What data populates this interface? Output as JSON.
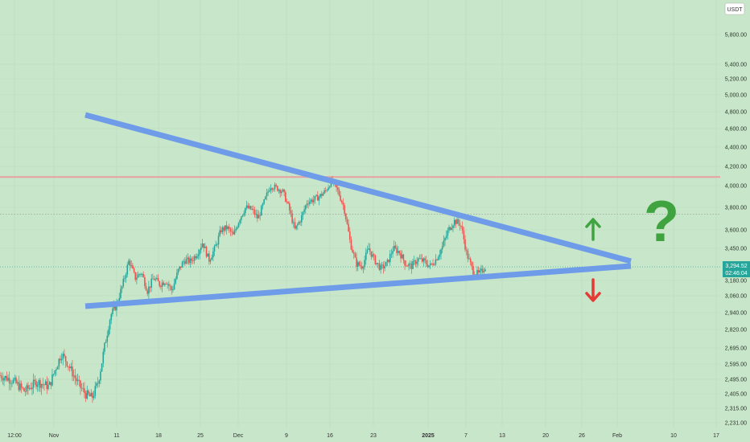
{
  "chart_data": {
    "type": "candlestick",
    "currency": "USDT",
    "y_ticks": [
      "5,800.00",
      "5,400.00",
      "5,200.00",
      "5,000.00",
      "4,800.00",
      "4,600.00",
      "4,400.00",
      "4,200.00",
      "4,000.00",
      "3,800.00",
      "3,600.00",
      "3,450.00",
      "3,180.00",
      "3,060.00",
      "2,940.00",
      "2,820.00",
      "2,695.00",
      "2,595.00",
      "2,495.00",
      "2,405.00",
      "2,315.00",
      "2,231.00"
    ],
    "x_ticks": [
      {
        "label": "12:00",
        "bold": false
      },
      {
        "label": "Nov",
        "bold": false
      },
      {
        "label": "11",
        "bold": false
      },
      {
        "label": "18",
        "bold": false
      },
      {
        "label": "25",
        "bold": false
      },
      {
        "label": "Dec",
        "bold": false
      },
      {
        "label": "9",
        "bold": false
      },
      {
        "label": "16",
        "bold": false
      },
      {
        "label": "23",
        "bold": false
      },
      {
        "label": "2025",
        "bold": true
      },
      {
        "label": "7",
        "bold": false
      },
      {
        "label": "13",
        "bold": false
      },
      {
        "label": "20",
        "bold": false
      },
      {
        "label": "26",
        "bold": false
      },
      {
        "label": "Feb",
        "bold": false
      },
      {
        "label": "10",
        "bold": false
      },
      {
        "label": "17",
        "bold": false
      }
    ],
    "current_price": "3,294.52",
    "countdown": "02:46:04",
    "resistance_level": 4090,
    "dotted_level": 3740,
    "price_path": [
      [
        0,
        2520
      ],
      [
        2,
        2490
      ],
      [
        4,
        2420
      ],
      [
        6,
        2480
      ],
      [
        8,
        2450
      ],
      [
        9,
        2560
      ],
      [
        10,
        2660
      ],
      [
        11,
        2600
      ],
      [
        12,
        2520
      ],
      [
        13,
        2450
      ],
      [
        14,
        2400
      ],
      [
        15,
        2380
      ],
      [
        16,
        2480
      ],
      [
        17,
        2700
      ],
      [
        18,
        2920
      ],
      [
        19,
        3000
      ],
      [
        20,
        3150
      ],
      [
        21,
        3350
      ],
      [
        22,
        3200
      ],
      [
        23,
        3250
      ],
      [
        24,
        3100
      ],
      [
        25,
        3200
      ],
      [
        26,
        3150
      ],
      [
        27,
        3180
      ],
      [
        28,
        3100
      ],
      [
        29,
        3260
      ],
      [
        30,
        3350
      ],
      [
        31,
        3340
      ],
      [
        32,
        3400
      ],
      [
        33,
        3500
      ],
      [
        34,
        3350
      ],
      [
        35,
        3450
      ],
      [
        36,
        3600
      ],
      [
        37,
        3620
      ],
      [
        38,
        3550
      ],
      [
        39,
        3700
      ],
      [
        40,
        3800
      ],
      [
        41,
        3780
      ],
      [
        42,
        3700
      ],
      [
        43,
        3850
      ],
      [
        44,
        4000
      ],
      [
        45,
        3980
      ],
      [
        46,
        3950
      ],
      [
        47,
        3800
      ],
      [
        48,
        3600
      ],
      [
        49,
        3700
      ],
      [
        50,
        3850
      ],
      [
        51,
        3870
      ],
      [
        52,
        3900
      ],
      [
        53,
        3950
      ],
      [
        54,
        4050
      ],
      [
        55,
        3950
      ],
      [
        56,
        3800
      ],
      [
        57,
        3500
      ],
      [
        58,
        3320
      ],
      [
        59,
        3300
      ],
      [
        60,
        3450
      ],
      [
        61,
        3350
      ],
      [
        62,
        3280
      ],
      [
        63,
        3320
      ],
      [
        64,
        3450
      ],
      [
        65,
        3420
      ],
      [
        66,
        3320
      ],
      [
        67,
        3300
      ],
      [
        68,
        3360
      ],
      [
        69,
        3340
      ],
      [
        70,
        3300
      ],
      [
        71,
        3360
      ],
      [
        72,
        3460
      ],
      [
        73,
        3600
      ],
      [
        74,
        3680
      ],
      [
        75,
        3650
      ],
      [
        76,
        3400
      ],
      [
        77,
        3260
      ],
      [
        78,
        3230
      ],
      [
        79,
        3295
      ]
    ],
    "annotations": {
      "question_mark": "?",
      "arrow_up": "up",
      "arrow_down": "down"
    },
    "colors": {
      "background": "#c8e6c9",
      "up_candle": "#26a69a",
      "down_candle": "#ef5350",
      "trendline": "#6f9ce8",
      "resistance": "#e8a0a0",
      "question": "#3fa33f",
      "arrow_up": "#3fa33f",
      "arrow_down": "#e53935",
      "price_badge": "#26a69a"
    }
  }
}
